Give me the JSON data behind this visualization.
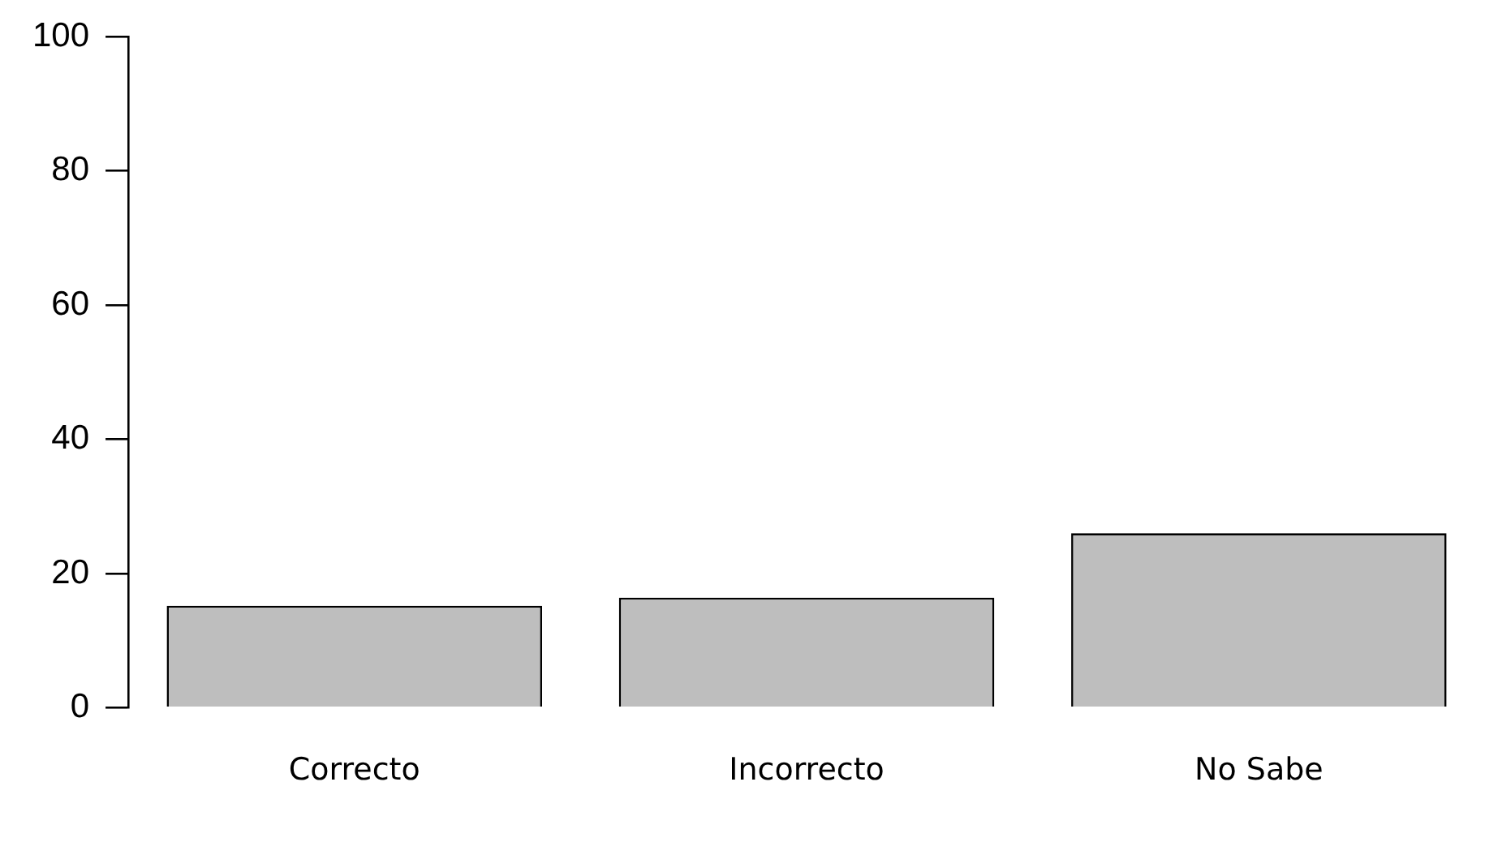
{
  "chart_data": {
    "type": "bar",
    "categories": [
      "Correcto",
      "Incorrecto",
      "No Sabe"
    ],
    "values": [
      15.2,
      16.4,
      26.0
    ],
    "color": "#bebebe",
    "ylim": [
      0,
      100
    ],
    "yticks": [
      0,
      20,
      40,
      60,
      80,
      100
    ],
    "grid": false,
    "legend": false
  }
}
